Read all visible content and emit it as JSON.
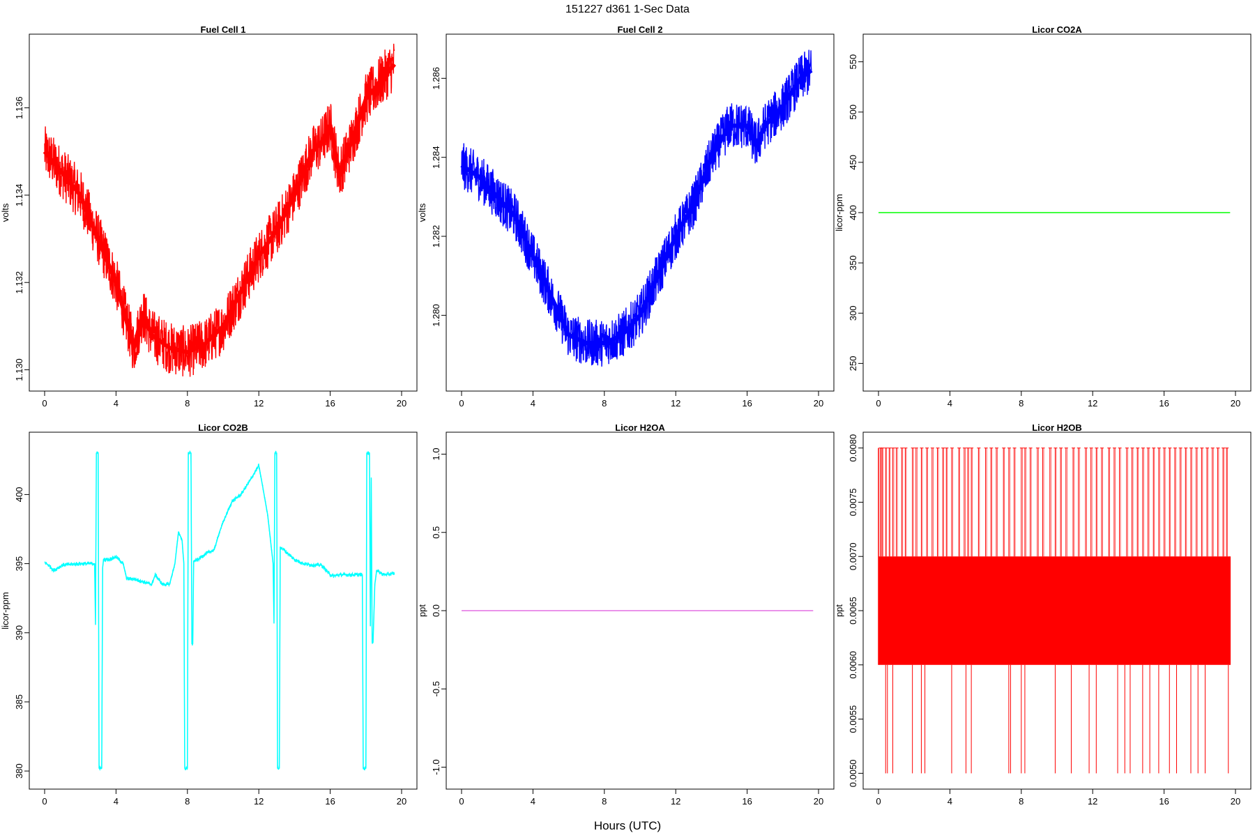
{
  "figure": {
    "title": "151227   d361   1-Sec Data",
    "xlabel": "Hours (UTC)"
  },
  "chart_data": [
    {
      "id": "fc1",
      "type": "line",
      "title": "Fuel Cell 1",
      "ylabel": "volts",
      "color": "#ff0000",
      "xlim": [
        0,
        20
      ],
      "ylim": [
        1.1298,
        1.1374
      ],
      "xticks": [
        "0",
        "4",
        "8",
        "12",
        "16",
        "20"
      ],
      "yticks": [
        "1.130",
        "1.132",
        "1.134",
        "1.136"
      ],
      "noise": 0.0006,
      "x": [
        0,
        1,
        2,
        3,
        4,
        5,
        5.5,
        6,
        7,
        8,
        9,
        10,
        11,
        12,
        13,
        14,
        15,
        15.5,
        16,
        16.5,
        17,
        18,
        19,
        19.6
      ],
      "y": [
        1.135,
        1.1345,
        1.134,
        1.133,
        1.132,
        1.1305,
        1.1313,
        1.1308,
        1.1305,
        1.1304,
        1.1306,
        1.131,
        1.1318,
        1.1326,
        1.1332,
        1.134,
        1.135,
        1.1352,
        1.1356,
        1.1345,
        1.135,
        1.1362,
        1.1367,
        1.137
      ]
    },
    {
      "id": "fc2",
      "type": "line",
      "title": "Fuel Cell 2",
      "ylabel": "volts",
      "color": "#0000ff",
      "xlim": [
        0,
        20
      ],
      "ylim": [
        1.2784,
        1.2868
      ],
      "xticks": [
        "0",
        "4",
        "8",
        "12",
        "16",
        "20"
      ],
      "yticks": [
        "1.280",
        "1.282",
        "1.284",
        "1.286"
      ],
      "noise": 0.0006,
      "x": [
        0,
        1,
        2,
        3,
        4,
        5,
        6,
        7,
        8,
        9,
        10,
        11,
        12,
        13,
        14,
        15,
        16,
        16.5,
        17,
        18,
        19,
        19.6
      ],
      "y": [
        1.2838,
        1.2835,
        1.283,
        1.2825,
        1.2815,
        1.2805,
        1.2795,
        1.2793,
        1.2793,
        1.2795,
        1.28,
        1.281,
        1.282,
        1.2828,
        1.284,
        1.2848,
        1.2848,
        1.2843,
        1.2848,
        1.2853,
        1.286,
        1.2862
      ]
    },
    {
      "id": "co2a",
      "type": "line",
      "title": "Licor CO2A",
      "ylabel": "licor-ppm",
      "color": "#00ff00",
      "xlim": [
        0,
        20
      ],
      "ylim": [
        235,
        565
      ],
      "xticks": [
        "0",
        "4",
        "8",
        "12",
        "16",
        "20"
      ],
      "yticks": [
        "250",
        "300",
        "350",
        "400",
        "450",
        "500",
        "550"
      ],
      "x": [
        0,
        19.7
      ],
      "y": [
        400,
        400
      ]
    },
    {
      "id": "co2b",
      "type": "line",
      "title": "Licor CO2B",
      "ylabel": "licor-ppm",
      "color": "#00ffff",
      "xlim": [
        0,
        20
      ],
      "ylim": [
        379.6,
        403.6
      ],
      "xticks": [
        "0",
        "4",
        "8",
        "12",
        "16",
        "20"
      ],
      "yticks": [
        "380",
        "385",
        "390",
        "395",
        "400"
      ],
      "noise": 0.15,
      "x": [
        0,
        0.3,
        0.5,
        1,
        2,
        2.8,
        2.85,
        2.9,
        3.0,
        3.05,
        3.1,
        3.2,
        3.25,
        3.3,
        3.6,
        4.0,
        4.4,
        4.6,
        5,
        5.5,
        6.0,
        6.2,
        6.6,
        7.0,
        7.3,
        7.5,
        7.7,
        7.8,
        7.85,
        7.9,
        8.0,
        8.05,
        8.1,
        8.2,
        8.25,
        8.3,
        8.35,
        8.4,
        8.6,
        9,
        9.5,
        9.8,
        10.0,
        10.5,
        11,
        11.5,
        12,
        12.2,
        12.5,
        12.8,
        12.85,
        12.9,
        13.0,
        13.05,
        13.1,
        13.15,
        13.2,
        13.4,
        14,
        14.5,
        15,
        15.5,
        16.0,
        16.2,
        16.5,
        17,
        17.8,
        17.85,
        17.9,
        18.0,
        18.05,
        18.1,
        18.2,
        18.25,
        18.3,
        18.35,
        18.4,
        18.5,
        18.6,
        19,
        19.6
      ],
      "y": [
        395.1,
        394.8,
        394.5,
        394.9,
        395.0,
        395.0,
        390.6,
        403.0,
        403.0,
        380.2,
        380.2,
        380.2,
        394.7,
        395.3,
        395.3,
        395.5,
        395.0,
        393.9,
        393.9,
        393.7,
        393.5,
        394.2,
        393.5,
        393.5,
        395.0,
        397.3,
        396.7,
        395.0,
        380.2,
        380.2,
        380.2,
        403.0,
        403.0,
        403.0,
        389.2,
        389.2,
        395.2,
        395.2,
        395.3,
        395.7,
        396.0,
        397.3,
        398.0,
        399.5,
        400.0,
        401.0,
        402.1,
        400.7,
        398.5,
        395.0,
        390.7,
        403.0,
        403.0,
        380.2,
        380.2,
        380.2,
        396.2,
        396.0,
        395.3,
        395.0,
        394.9,
        394.9,
        394.2,
        394.1,
        394.2,
        394.2,
        394.2,
        380.2,
        380.2,
        380.2,
        403.0,
        403.0,
        403.0,
        390.5,
        401.2,
        389.3,
        389.3,
        393.5,
        394.5,
        394.2,
        394.3
      ]
    },
    {
      "id": "h2oa",
      "type": "line",
      "title": "Licor H2OA",
      "ylabel": "ppt",
      "color": "#e36ee3",
      "xlim": [
        0,
        20
      ],
      "ylim": [
        -1.06,
        1.06
      ],
      "xticks": [
        "0",
        "4",
        "8",
        "12",
        "16",
        "20"
      ],
      "yticks": [
        "-1.0",
        "-0.5",
        "0.0",
        "0.5",
        "1.0"
      ],
      "x": [
        0,
        19.7
      ],
      "y": [
        0,
        0
      ]
    },
    {
      "id": "h2ob",
      "type": "line",
      "title": "Licor H2OB",
      "ylabel": "ppt",
      "color": "#ff0000",
      "xlim": [
        0,
        20
      ],
      "ylim": [
        0.00497,
        0.00803
      ],
      "xticks": [
        "0",
        "4",
        "8",
        "12",
        "16",
        "20"
      ],
      "yticks": [
        "0.0050",
        "0.0055",
        "0.0060",
        "0.0065",
        "0.0070",
        "0.0075",
        "0.0080"
      ],
      "x": [
        0,
        19.7
      ],
      "band": [
        0.006,
        0.007
      ],
      "spike_max": 0.008,
      "spike_min": 0.005,
      "spike_up_x": [
        0.1,
        0.2,
        0.4,
        0.6,
        0.8,
        1.0,
        1.3,
        1.5,
        1.9,
        2.1,
        2.4,
        2.7,
        3.0,
        3.3,
        3.6,
        3.8,
        4.1,
        4.5,
        4.8,
        5.0,
        5.2,
        5.6,
        6.0,
        6.3,
        6.6,
        7.0,
        7.3,
        7.6,
        8.0,
        8.2,
        8.5,
        8.9,
        9.2,
        9.6,
        9.9,
        10.2,
        10.5,
        10.9,
        11.2,
        11.6,
        11.9,
        12.2,
        12.5,
        12.9,
        13.2,
        13.5,
        13.9,
        14.2,
        14.5,
        14.8,
        15.1,
        15.4,
        15.7,
        16.0,
        16.3,
        16.6,
        16.9,
        17.2,
        17.5,
        17.8,
        18.1,
        18.4,
        18.7,
        19.0,
        19.3,
        19.5
      ],
      "spike_down_x": [
        0.4,
        0.5,
        0.8,
        1.9,
        2.4,
        2.6,
        4.1,
        4.9,
        5.2,
        7.3,
        7.4,
        8.0,
        8.2,
        9.9,
        10.8,
        11.8,
        12.2,
        13.4,
        13.8,
        14.1,
        14.8,
        15.2,
        15.7,
        16.3,
        16.7,
        17.5,
        17.9,
        18.3,
        19.6
      ]
    }
  ]
}
